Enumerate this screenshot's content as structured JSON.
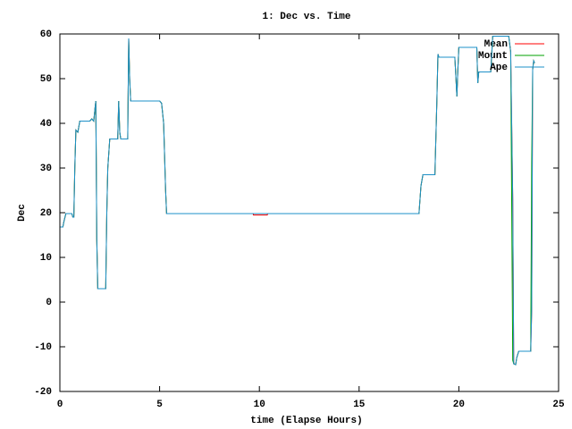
{
  "chart_data": {
    "type": "line",
    "title": "1: Dec vs. Time",
    "x_label": "time (Elapse Hours)",
    "y_label": "Dec",
    "x": [
      0,
      0.15,
      0.2,
      0.3,
      0.6,
      0.65,
      0.7,
      0.75,
      0.8,
      0.9,
      1.0,
      1.5,
      1.6,
      1.7,
      1.75,
      1.8,
      1.85,
      1.9,
      2.3,
      2.35,
      2.4,
      2.5,
      2.9,
      2.95,
      3.0,
      3.05,
      3.4,
      3.45,
      3.5,
      3.55,
      5.0,
      5.1,
      5.2,
      5.3,
      5.35,
      9.69,
      9.7,
      10.4,
      10.41,
      18.0,
      18.1,
      18.2,
      18.8,
      18.9,
      18.95,
      19.0,
      19.8,
      19.9,
      19.95,
      20.0,
      20.9,
      20.95,
      21.0,
      21.6,
      21.7,
      22.5,
      22.6,
      22.7,
      22.75,
      22.85,
      22.9,
      23.0,
      23.6,
      23.65,
      23.7,
      23.75,
      23.8
    ],
    "series": [
      {
        "name": "Mean",
        "color": "#ff0000",
        "values": [
          16.8,
          16.8,
          18,
          19.8,
          19.8,
          19,
          19,
          30,
          38.5,
          38,
          40.5,
          40.5,
          41,
          40.5,
          43,
          45,
          14,
          3,
          3,
          20,
          30,
          36.5,
          36.5,
          45,
          38,
          36.5,
          36.5,
          59,
          50,
          45,
          45,
          44.5,
          40,
          25,
          19.8,
          19.8,
          19.5,
          19.5,
          19.8,
          19.8,
          26,
          28.5,
          28.5,
          45,
          55.5,
          54.8,
          54.8,
          46,
          52,
          57,
          57,
          49,
          51.5,
          51.5,
          59.5,
          59.5,
          56,
          23,
          -13.8,
          -14,
          -12.5,
          -11,
          -11,
          -2,
          52,
          54,
          53.5
        ]
      },
      {
        "name": "Mount",
        "color": "#00a000",
        "values": [
          16.8,
          16.8,
          18,
          19.8,
          19.8,
          19,
          19,
          30,
          38.5,
          38,
          40.5,
          40.5,
          41,
          40.5,
          43,
          45,
          14,
          3,
          3,
          20,
          30,
          36.5,
          36.5,
          45,
          38,
          36.5,
          36.5,
          59,
          50,
          45,
          45,
          44.5,
          40,
          25,
          19.8,
          19.8,
          19.8,
          19.8,
          19.8,
          19.8,
          26,
          28.5,
          28.5,
          45,
          55.5,
          54.8,
          54.8,
          46,
          52,
          57,
          57,
          49,
          51.5,
          51.5,
          59.5,
          59.5,
          56,
          -13,
          -13.8,
          -14,
          -12.5,
          -11,
          -11,
          31,
          52,
          54,
          53.5
        ]
      },
      {
        "name": "Ape",
        "color": "#1e90c8",
        "values": [
          16.8,
          16.8,
          18,
          19.8,
          19.8,
          19,
          19,
          30,
          38.5,
          38,
          40.5,
          40.5,
          41,
          40.5,
          43,
          45,
          14,
          3,
          3,
          20,
          30,
          36.5,
          36.5,
          45,
          38,
          36.5,
          36.5,
          59,
          50,
          45,
          45,
          44.5,
          40,
          25,
          19.8,
          19.8,
          19.8,
          19.8,
          19.8,
          19.8,
          26,
          28.5,
          28.5,
          45,
          55.5,
          54.8,
          54.8,
          46,
          52,
          57,
          57,
          49,
          51.5,
          51.5,
          59.5,
          59.5,
          56,
          23,
          -13.8,
          -14,
          -12.5,
          -11,
          -11,
          -2,
          52,
          54,
          53.5
        ]
      }
    ],
    "xlim": [
      0,
      25
    ],
    "xticks": [
      0,
      5,
      10,
      15,
      20,
      25
    ],
    "ylim": [
      -20,
      60
    ],
    "yticks": [
      -20,
      -10,
      0,
      10,
      20,
      30,
      40,
      50,
      60
    ],
    "legend": "top-right"
  }
}
